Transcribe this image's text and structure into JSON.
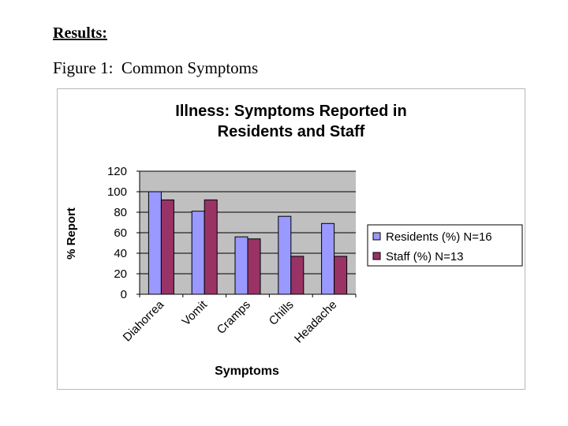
{
  "heading": "Results:",
  "figure_caption": "Figure 1:  Common Symptoms",
  "chart_data": {
    "type": "bar",
    "title": [
      "Illness: Symptoms Reported in",
      "Residents and Staff"
    ],
    "xlabel": "Symptoms",
    "ylabel": "% Report",
    "categories": [
      "Diahorrea",
      "Vomit",
      "Cramps",
      "Chills",
      "Headache"
    ],
    "ylim": [
      0,
      120
    ],
    "yticks": [
      0,
      20,
      40,
      60,
      80,
      100,
      120
    ],
    "grid": true,
    "legend_position": "right",
    "series": [
      {
        "name": "Residents (%) N=16",
        "color": "#9999ff",
        "values": [
          100,
          81,
          56,
          76,
          69
        ]
      },
      {
        "name": "Staff (%) N=13",
        "color": "#993366",
        "values": [
          92,
          92,
          54,
          37,
          37
        ]
      }
    ],
    "plot_background": "#c0c0c0"
  }
}
